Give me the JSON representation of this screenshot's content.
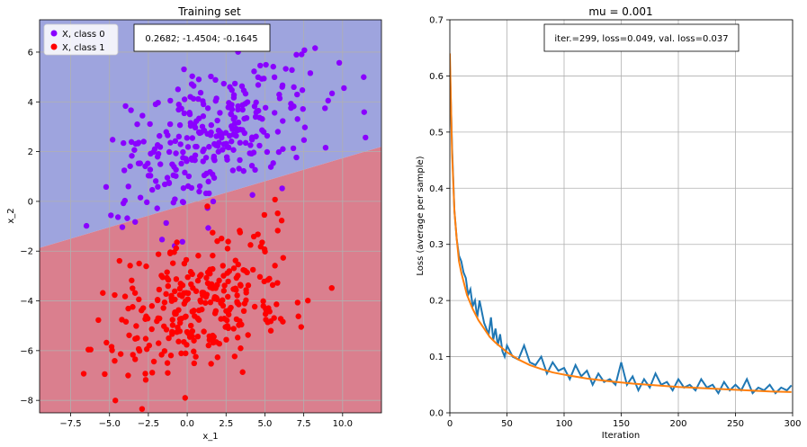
{
  "chart_data": [
    {
      "type": "scatter",
      "title": "Training set",
      "xlabel": "x_1",
      "ylabel": "x_2",
      "xlim": [
        -9.5,
        12.5
      ],
      "ylim": [
        -8.5,
        7.3
      ],
      "xticks": [
        -7.5,
        -5.0,
        -2.5,
        0.0,
        2.5,
        5.0,
        7.5,
        10.0
      ],
      "xtick_labels": [
        "−7.5",
        "−5.0",
        "−2.5",
        "0.0",
        "2.5",
        "5.0",
        "7.5",
        "10.0"
      ],
      "yticks": [
        -8,
        -6,
        -4,
        -2,
        0,
        2,
        4,
        6
      ],
      "ytick_labels": [
        "−8",
        "−6",
        "−4",
        "−2",
        "0",
        "2",
        "4",
        "6"
      ],
      "grid": true,
      "legend_position": "top-left",
      "annotation": "0.2682;  -1.4504;  -0.1645",
      "decision_boundary": {
        "w1": 0.2682,
        "w2": -1.4504,
        "b": -0.1645
      },
      "region_colors": {
        "class_0": "#9ea4de",
        "class_1": "#da7f8e"
      },
      "series": [
        {
          "name": "X, class 0",
          "color": "#8a00ff",
          "center": [
            1.5,
            2.5
          ],
          "spread": [
            3.2,
            1.5
          ],
          "count": 300,
          "seed": 7
        },
        {
          "name": "X, class 1",
          "color": "#ff0000",
          "center": [
            0.5,
            -4.3
          ],
          "spread": [
            3.2,
            1.5
          ],
          "count": 300,
          "seed": 31
        }
      ]
    },
    {
      "type": "line",
      "title": "mu = 0.001",
      "xlabel": "Iteration",
      "ylabel": "Loss (average per sample)",
      "xlim": [
        0,
        300
      ],
      "ylim": [
        0,
        0.7
      ],
      "xticks": [
        0,
        50,
        100,
        150,
        200,
        250,
        300
      ],
      "xtick_labels": [
        "0",
        "50",
        "100",
        "150",
        "200",
        "250",
        "300"
      ],
      "yticks": [
        0.0,
        0.1,
        0.2,
        0.3,
        0.4,
        0.5,
        0.6,
        0.7
      ],
      "ytick_labels": [
        "0.0",
        "0.1",
        "0.2",
        "0.3",
        "0.4",
        "0.5",
        "0.6",
        "0.7"
      ],
      "grid": true,
      "annotation": "iter.=299, loss=0.049, val. loss=0.037",
      "series": [
        {
          "name": "loss",
          "color": "#1f77b4",
          "x": [
            0,
            2,
            4,
            6,
            8,
            10,
            12,
            14,
            16,
            18,
            20,
            22,
            24,
            26,
            28,
            30,
            32,
            34,
            36,
            38,
            40,
            42,
            44,
            46,
            48,
            50,
            55,
            60,
            65,
            70,
            75,
            80,
            85,
            90,
            95,
            100,
            105,
            110,
            115,
            120,
            125,
            130,
            135,
            140,
            145,
            150,
            155,
            160,
            165,
            170,
            175,
            180,
            185,
            190,
            195,
            200,
            205,
            210,
            215,
            220,
            225,
            230,
            235,
            240,
            245,
            250,
            255,
            260,
            265,
            270,
            275,
            280,
            285,
            290,
            295,
            299
          ],
          "y": [
            0.62,
            0.47,
            0.36,
            0.31,
            0.28,
            0.27,
            0.25,
            0.24,
            0.21,
            0.22,
            0.19,
            0.2,
            0.17,
            0.2,
            0.18,
            0.16,
            0.15,
            0.14,
            0.17,
            0.13,
            0.15,
            0.12,
            0.14,
            0.11,
            0.1,
            0.12,
            0.1,
            0.095,
            0.12,
            0.09,
            0.085,
            0.1,
            0.07,
            0.09,
            0.075,
            0.08,
            0.06,
            0.085,
            0.065,
            0.075,
            0.05,
            0.07,
            0.055,
            0.06,
            0.05,
            0.09,
            0.05,
            0.065,
            0.04,
            0.06,
            0.045,
            0.07,
            0.05,
            0.055,
            0.04,
            0.06,
            0.045,
            0.05,
            0.04,
            0.06,
            0.045,
            0.05,
            0.035,
            0.055,
            0.04,
            0.05,
            0.04,
            0.06,
            0.035,
            0.045,
            0.04,
            0.05,
            0.035,
            0.045,
            0.04,
            0.049
          ]
        },
        {
          "name": "val. loss",
          "color": "#ff7f0e",
          "x": [
            0,
            2,
            4,
            6,
            8,
            10,
            15,
            20,
            25,
            30,
            35,
            40,
            50,
            60,
            70,
            80,
            90,
            100,
            120,
            140,
            160,
            180,
            200,
            220,
            240,
            260,
            280,
            299
          ],
          "y": [
            0.64,
            0.46,
            0.36,
            0.31,
            0.27,
            0.25,
            0.21,
            0.185,
            0.165,
            0.15,
            0.135,
            0.125,
            0.108,
            0.095,
            0.085,
            0.078,
            0.072,
            0.068,
            0.061,
            0.056,
            0.052,
            0.049,
            0.046,
            0.044,
            0.042,
            0.04,
            0.038,
            0.037
          ]
        }
      ]
    }
  ]
}
